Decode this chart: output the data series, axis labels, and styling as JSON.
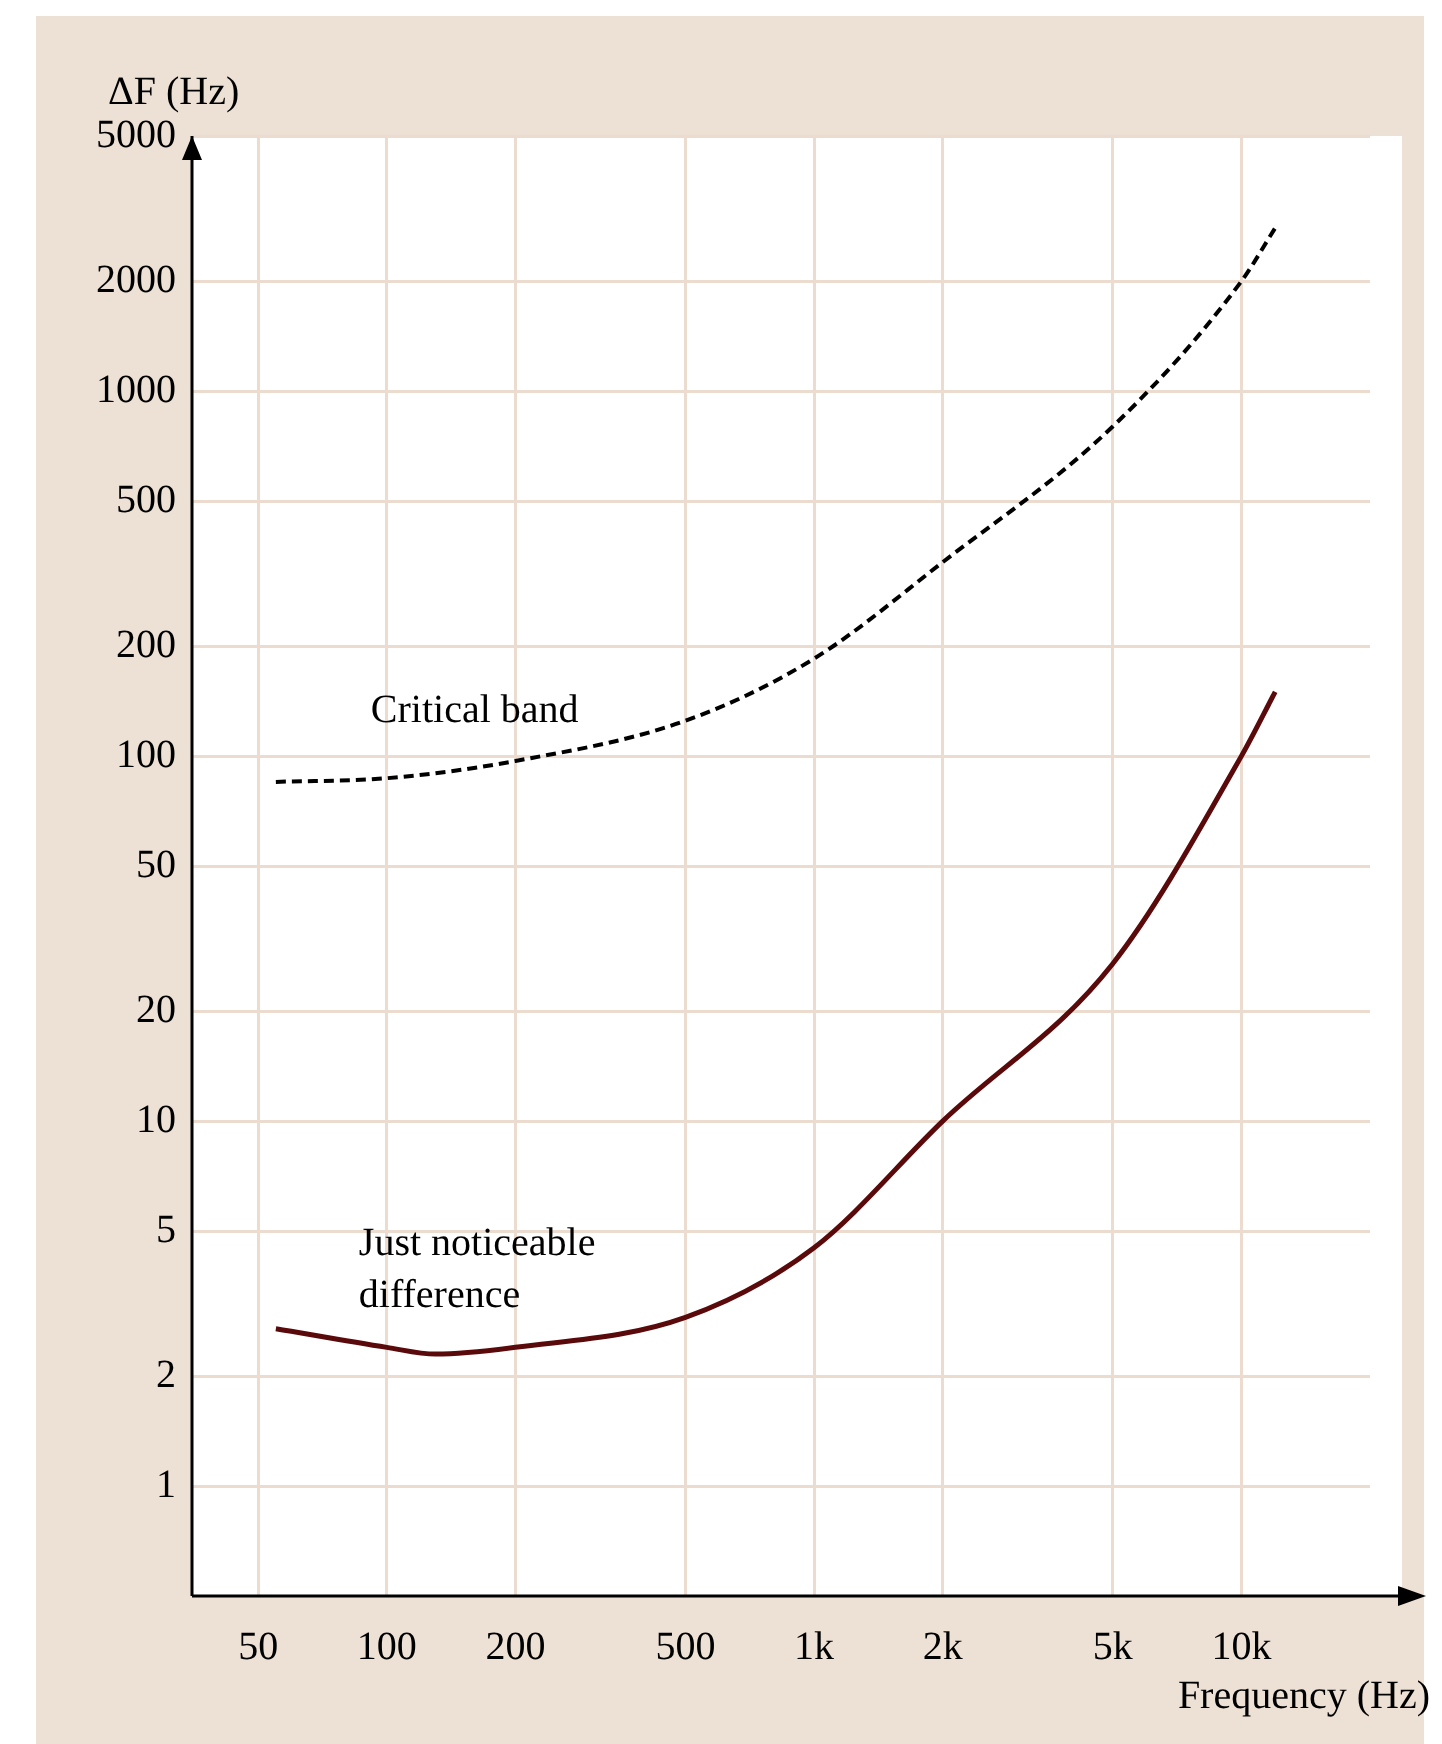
{
  "chart_data": {
    "type": "line",
    "xlabel": "Frequency (Hz)",
    "ylabel": "ΔF (Hz)",
    "log": "xy",
    "xlim": [
      35,
      20000
    ],
    "xticks": [
      50,
      100,
      200,
      500,
      {
        "value": 1000,
        "label": "1k"
      },
      {
        "value": 2000,
        "label": "2k"
      },
      {
        "value": 5000,
        "label": "5k"
      },
      {
        "value": 10000,
        "label": "10k"
      }
    ],
    "ylim": [
      0.5,
      5000
    ],
    "yticks": [
      1,
      2,
      5,
      10,
      20,
      50,
      100,
      200,
      500,
      1000,
      2000,
      5000
    ],
    "grid": true,
    "legend": false,
    "marker": "none",
    "series": [
      {
        "name": "Critical band",
        "color": "#000000",
        "line_style": "dashed",
        "x": [
          55,
          100,
          200,
          500,
          1000,
          2000,
          5000,
          10000,
          12000
        ],
        "values": [
          85,
          87,
          97,
          125,
          185,
          340,
          800,
          2000,
          2800
        ]
      },
      {
        "name": "Just noticeable difference",
        "color": "#5a0a0a",
        "line_style": "solid",
        "x": [
          55,
          100,
          130,
          200,
          500,
          1000,
          2000,
          5000,
          10000,
          12000
        ],
        "values": [
          2.7,
          2.4,
          2.3,
          2.4,
          2.9,
          4.5,
          10,
          27,
          100,
          150
        ]
      }
    ]
  }
}
